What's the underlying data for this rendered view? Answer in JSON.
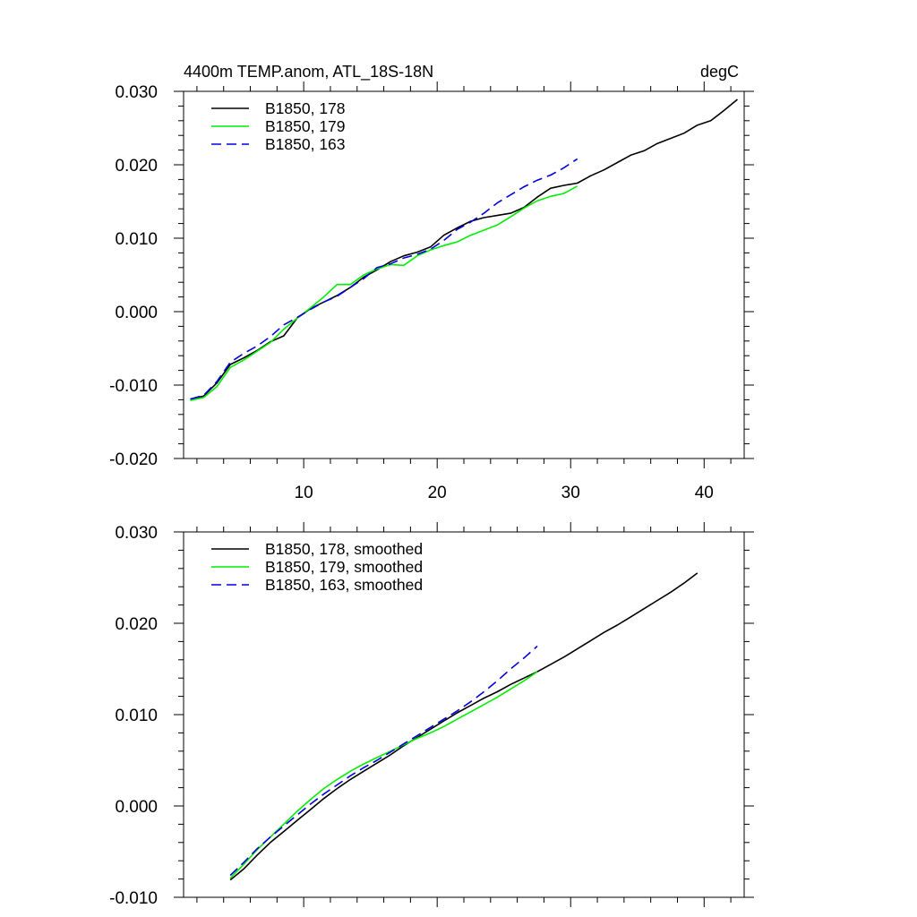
{
  "chart_data": [
    {
      "type": "line",
      "title": "4400m TEMP.anom, ATL_18S-18N",
      "units": "degC",
      "xlabel": "",
      "ylabel": "",
      "xlim": [
        1,
        43
      ],
      "ylim": [
        -0.02,
        0.03
      ],
      "xticks": [
        10,
        20,
        30,
        40
      ],
      "yticks": [
        -0.02,
        -0.01,
        0.0,
        0.01,
        0.02,
        0.03
      ],
      "ytick_labels": [
        "-0.020",
        "-0.010",
        "0.000",
        "0.010",
        "0.020",
        "0.030"
      ],
      "xtick_labels": [
        "10",
        "20",
        "30",
        "40"
      ],
      "legend_position": "top-left",
      "series": [
        {
          "name": "B1850, 178",
          "color": "#000000",
          "dash": "solid",
          "x": [
            1.5,
            2.5,
            3.5,
            4.5,
            5.5,
            6.5,
            7.5,
            8.5,
            9.5,
            10.5,
            11.5,
            12.5,
            13.5,
            14.5,
            15.5,
            16.5,
            17.5,
            18.5,
            19.5,
            20.5,
            21.5,
            22.5,
            23.5,
            24.5,
            25.5,
            26.5,
            27.5,
            28.5,
            29.5,
            30.5,
            31.5,
            32.5,
            33.5,
            34.5,
            35.5,
            36.5,
            37.5,
            38.5,
            39.5,
            40.5,
            41.5,
            42.5
          ],
          "y": [
            -0.0119,
            -0.0115,
            -0.0097,
            -0.0072,
            -0.0063,
            -0.0053,
            -0.0041,
            -0.0033,
            -0.0009,
            0.0004,
            0.0013,
            0.0022,
            0.0033,
            0.0047,
            0.0057,
            0.0068,
            0.0076,
            0.0081,
            0.0088,
            0.0104,
            0.0114,
            0.0123,
            0.0128,
            0.0131,
            0.0134,
            0.0142,
            0.0156,
            0.0168,
            0.0172,
            0.0175,
            0.0185,
            0.0193,
            0.0203,
            0.0213,
            0.0219,
            0.0229,
            0.0236,
            0.0243,
            0.0254,
            0.026,
            0.0274,
            0.0289
          ]
        },
        {
          "name": "B1850, 179",
          "color": "#00ee00",
          "dash": "solid",
          "x": [
            1.5,
            2.5,
            3.5,
            4.5,
            5.5,
            6.5,
            7.5,
            8.5,
            9.5,
            10.5,
            11.5,
            12.5,
            13.5,
            14.5,
            15.5,
            16.5,
            17.5,
            18.5,
            19.5,
            20.5,
            21.5,
            22.5,
            23.5,
            24.5,
            25.5,
            26.5,
            27.5,
            28.5,
            29.5,
            30.5
          ],
          "y": [
            -0.0121,
            -0.0117,
            -0.0102,
            -0.0076,
            -0.0066,
            -0.0054,
            -0.0042,
            -0.0024,
            -0.0009,
            0.0005,
            0.002,
            0.0037,
            0.0037,
            0.005,
            0.0058,
            0.0064,
            0.0063,
            0.0076,
            0.0084,
            0.009,
            0.0095,
            0.0104,
            0.0111,
            0.0118,
            0.0129,
            0.0141,
            0.0151,
            0.0157,
            0.0161,
            0.0171
          ]
        },
        {
          "name": "B1850, 163",
          "color": "#0000dd",
          "dash": "dashed",
          "x": [
            1.5,
            2.5,
            3.5,
            4.5,
            5.5,
            6.5,
            7.5,
            8.5,
            9.5,
            10.5,
            11.5,
            12.5,
            13.5,
            14.5,
            15.5,
            16.5,
            17.5,
            18.5,
            19.5,
            20.5,
            21.5,
            22.5,
            23.5,
            24.5,
            25.5,
            26.5,
            27.5,
            28.5,
            29.5,
            30.5
          ],
          "y": [
            -0.0119,
            -0.0114,
            -0.0095,
            -0.0069,
            -0.0057,
            -0.0047,
            -0.0034,
            -0.0018,
            -0.0008,
            0.0003,
            0.0013,
            0.0021,
            0.0033,
            0.0045,
            0.006,
            0.0065,
            0.0073,
            0.0078,
            0.0085,
            0.0097,
            0.0112,
            0.0122,
            0.0134,
            0.0148,
            0.0159,
            0.017,
            0.0179,
            0.0186,
            0.0196,
            0.0208
          ]
        }
      ]
    },
    {
      "type": "line",
      "title": "",
      "xlabel": "",
      "ylabel": "",
      "xlim": [
        1,
        43
      ],
      "ylim": [
        -0.01,
        0.03
      ],
      "xticks": [
        10,
        20,
        30,
        40
      ],
      "yticks": [
        -0.01,
        0.0,
        0.01,
        0.02,
        0.03
      ],
      "ytick_labels": [
        "-0.010",
        "0.000",
        "0.010",
        "0.020",
        "0.030"
      ],
      "xtick_labels": [],
      "legend_position": "top-left",
      "series": [
        {
          "name": "B1850, 178, smoothed",
          "color": "#000000",
          "dash": "solid",
          "x": [
            4.5,
            5.5,
            6.5,
            7.5,
            8.5,
            9.5,
            10.5,
            11.5,
            12.5,
            13.5,
            14.5,
            15.5,
            16.5,
            17.5,
            18.5,
            19.5,
            20.5,
            21.5,
            22.5,
            23.5,
            24.5,
            25.5,
            26.5,
            27.5,
            28.5,
            29.5,
            30.5,
            31.5,
            32.5,
            33.5,
            34.5,
            35.5,
            36.5,
            37.5,
            38.5,
            39.5
          ],
          "y": [
            -0.0081,
            -0.0069,
            -0.0054,
            -0.004,
            -0.0028,
            -0.0016,
            -0.0004,
            0.0008,
            0.0019,
            0.0029,
            0.0038,
            0.0047,
            0.0056,
            0.0066,
            0.0075,
            0.0084,
            0.0093,
            0.0102,
            0.011,
            0.0118,
            0.0125,
            0.0133,
            0.014,
            0.0147,
            0.0155,
            0.0163,
            0.0172,
            0.0181,
            0.019,
            0.0198,
            0.0207,
            0.0216,
            0.0225,
            0.0234,
            0.0244,
            0.0255
          ]
        },
        {
          "name": "B1850, 179, smoothed",
          "color": "#00ee00",
          "dash": "solid",
          "x": [
            4.5,
            5.5,
            6.5,
            7.5,
            8.5,
            9.5,
            10.5,
            11.5,
            12.5,
            13.5,
            14.5,
            15.5,
            16.5,
            17.5,
            18.5,
            19.5,
            20.5,
            21.5,
            22.5,
            23.5,
            24.5,
            25.5,
            26.5,
            27.5
          ],
          "y": [
            -0.0079,
            -0.0064,
            -0.0048,
            -0.0034,
            -0.002,
            -0.0006,
            0.0007,
            0.0019,
            0.0029,
            0.0038,
            0.0046,
            0.0053,
            0.006,
            0.0067,
            0.0074,
            0.008,
            0.0087,
            0.0095,
            0.0103,
            0.0111,
            0.0119,
            0.0128,
            0.0137,
            0.0147
          ]
        },
        {
          "name": "B1850, 163, smoothed",
          "color": "#0000dd",
          "dash": "dashed",
          "x": [
            4.5,
            5.5,
            6.5,
            7.5,
            8.5,
            9.5,
            10.5,
            11.5,
            12.5,
            13.5,
            14.5,
            15.5,
            16.5,
            17.5,
            18.5,
            19.5,
            20.5,
            21.5,
            22.5,
            23.5,
            24.5,
            25.5,
            26.5,
            27.5
          ],
          "y": [
            -0.0076,
            -0.0062,
            -0.0047,
            -0.0034,
            -0.0022,
            -0.001,
            0.0002,
            0.0013,
            0.0023,
            0.0033,
            0.0042,
            0.005,
            0.0059,
            0.0068,
            0.0077,
            0.0086,
            0.0095,
            0.0104,
            0.0114,
            0.0125,
            0.0137,
            0.015,
            0.0162,
            0.0175
          ]
        }
      ]
    }
  ]
}
